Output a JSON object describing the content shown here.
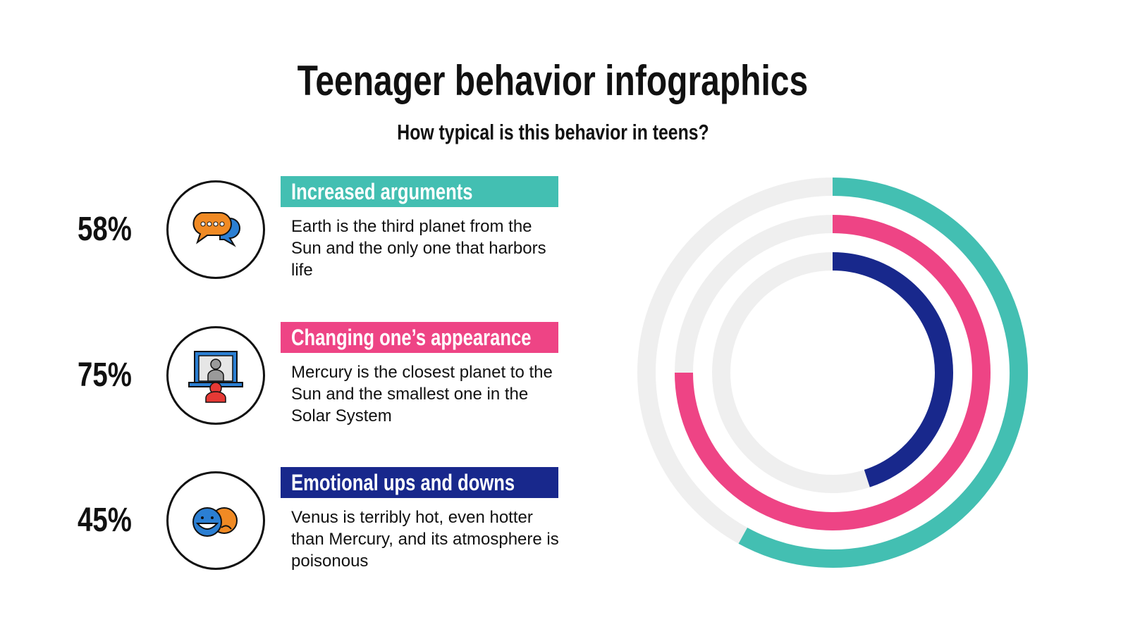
{
  "title": "Teenager behavior infographics",
  "subtitle": "How typical is this behavior in teens?",
  "items": [
    {
      "percent": "58%",
      "label": "Increased arguments",
      "description": "Earth is the third planet from the Sun and the only one that harbors life",
      "icon": "speech-bubbles-icon",
      "color": "#43BFB2"
    },
    {
      "percent": "75%",
      "label": "Changing one’s appearance",
      "description": "Mercury is the closest planet to the Sun and the smallest one in the Solar System",
      "icon": "mirror-person-icon",
      "color": "#EE4485"
    },
    {
      "percent": "45%",
      "label": "Emotional ups and downs",
      "description": "Venus is terribly hot, even hotter than Mercury, and its atmosphere is poisonous",
      "icon": "happy-sad-faces-icon",
      "color": "#18288C"
    }
  ],
  "chart_data": {
    "type": "radial-bar",
    "title": "How typical is this behavior in teens?",
    "categories": [
      "Increased arguments",
      "Changing one’s appearance",
      "Emotional ups and downs"
    ],
    "values": [
      58,
      75,
      45
    ],
    "max": 100,
    "colors": [
      "#43BFB2",
      "#EE4485",
      "#18288C"
    ],
    "track_color": "#EFEFEF"
  }
}
